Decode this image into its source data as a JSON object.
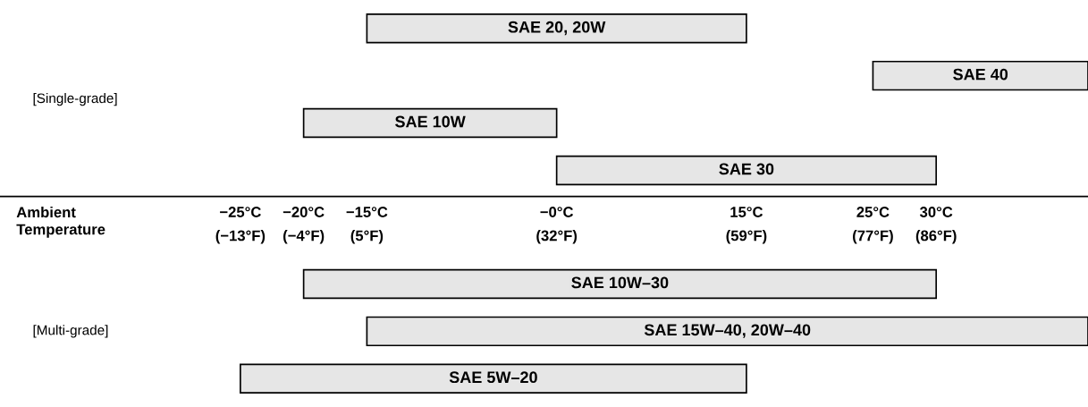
{
  "chart_data": {
    "type": "bar",
    "orientation": "horizontal",
    "xlabel": "Ambient\nTemperature",
    "categories": [
      "SAE 20, 20W",
      "SAE 40",
      "SAE 10W",
      "SAE 30",
      "SAE 10W–30",
      "SAE 15W–40, 20W–40",
      "SAE 5W–20"
    ],
    "values": [
      30,
      17,
      20,
      30,
      50,
      57,
      40
    ],
    "base": [
      -15,
      25,
      -20,
      0,
      -20,
      -15,
      -25
    ],
    "colors": [
      "#e6e6e6",
      "#e6e6e6",
      "#e6e6e6",
      "#e6e6e6",
      "#e6e6e6",
      "#e6e6e6",
      "#e6e6e6"
    ],
    "xlim": [
      -44,
      42
    ],
    "xticks": [
      {
        "value": -25,
        "label": "−25°C"
      },
      {
        "value": -20,
        "label": "−20°C"
      },
      {
        "value": -15,
        "label": "−15°C"
      },
      {
        "value": 0,
        "label": "−0°C"
      },
      {
        "value": 15,
        "label": "15°C"
      },
      {
        "value": 25,
        "label": "25°C"
      },
      {
        "value": 30,
        "label": "30°C"
      }
    ],
    "x2lim": [
      -47.2,
      107.6
    ],
    "x2ticks": [
      {
        "value": -13,
        "label": "(−13°F)"
      },
      {
        "value": -4,
        "label": "(−4°F)"
      },
      {
        "value": 5,
        "label": "(5°F)"
      },
      {
        "value": 32,
        "label": "(32°F)"
      },
      {
        "value": 59,
        "label": "(59°F)"
      },
      {
        "value": 77,
        "label": "(77°F)"
      },
      {
        "value": 86,
        "label": "(86°F)"
      }
    ],
    "annotations": [
      "[Single-grade]",
      "[Multi-grade]"
    ],
    "grid": false
  }
}
